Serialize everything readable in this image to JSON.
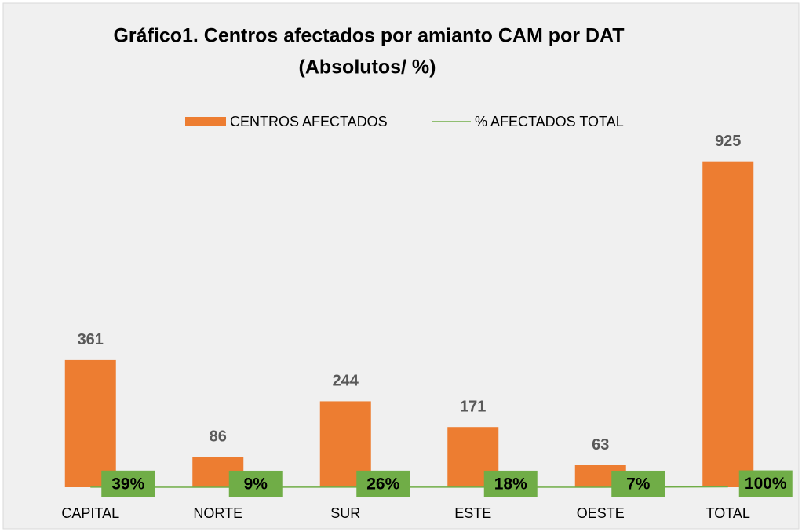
{
  "chart_data": {
    "type": "bar",
    "title": [
      "Gráfico1. Centros afectados por amianto CAM por DAT",
      "(Absolutos/ %)"
    ],
    "categories": [
      "CAPITAL",
      "NORTE",
      "SUR",
      "ESTE",
      "OESTE",
      "TOTAL"
    ],
    "ylim": [
      0,
      1000
    ],
    "legend": "top",
    "series": [
      {
        "name": "CENTROS AFECTADOS",
        "color": "#ed7d31",
        "type": "bar",
        "values": [
          361,
          86,
          244,
          171,
          63,
          925
        ]
      },
      {
        "name": "% AFECTADOS TOTAL",
        "color": "#70ad47",
        "type": "line",
        "values": [
          0.39,
          0.09,
          0.26,
          0.18,
          0.07,
          1.0
        ],
        "value_labels": [
          "39%",
          "9%",
          "26%",
          "18%",
          "7%",
          "100%"
        ]
      }
    ]
  }
}
